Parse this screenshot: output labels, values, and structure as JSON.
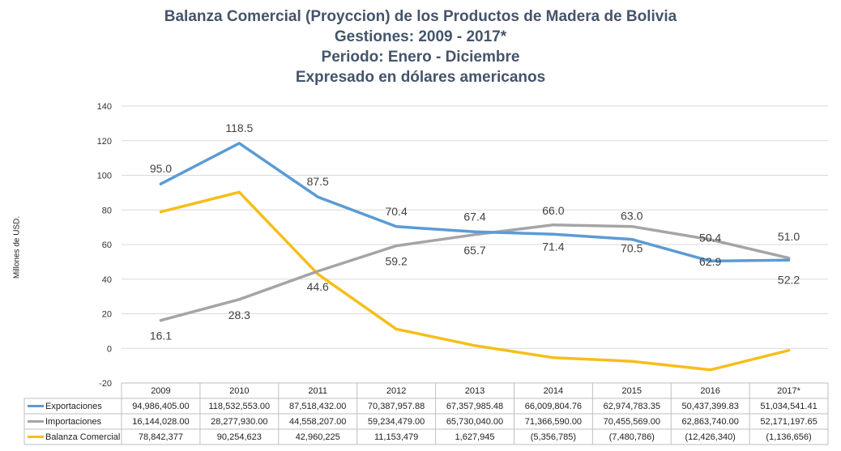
{
  "title_lines": [
    "Balanza Comercial (Proyccion) de los Productos de Madera de Bolivia",
    "Gestiones: 2009 - 2017*",
    "Periodo: Enero - Diciembre",
    "Expresado en dólares americanos"
  ],
  "chart_data": {
    "type": "line",
    "title": "Balanza Comercial (Proyccion) de los Productos de Madera de Bolivia",
    "ylabel": "Millones de USD.",
    "xlabel": "",
    "categories": [
      "2009",
      "2010",
      "2011",
      "2012",
      "2013",
      "2014",
      "2015",
      "2016",
      "2017*"
    ],
    "ylim": [
      -20,
      140
    ],
    "yticks": [
      -20,
      0,
      20,
      40,
      60,
      80,
      100,
      120,
      140
    ],
    "grid": true,
    "legend": "table-below",
    "series": [
      {
        "name": "Exportaciones",
        "color": "#5b9bd5",
        "values": [
          94.986,
          118.533,
          87.518,
          70.388,
          67.358,
          66.01,
          62.975,
          50.437,
          51.035
        ],
        "data_labels": [
          "95.0",
          "118.5",
          "87.5",
          "70.4",
          "67.4",
          "66.0",
          "63.0",
          "50.4",
          "51.0"
        ],
        "table_values": [
          "94,986,405.00",
          "118,532,553.00",
          "87,518,432.00",
          "70,387,957.88",
          "67,357,985.48",
          "66,009,804.76",
          "62,974,783.35",
          "50,437,399.83",
          "51,034,541.41"
        ]
      },
      {
        "name": "Importaciones",
        "color": "#a5a5a5",
        "values": [
          16.144,
          28.278,
          44.558,
          59.234,
          65.73,
          71.367,
          70.456,
          62.864,
          52.171
        ],
        "data_labels": [
          "16.1",
          "28.3",
          "44.6",
          "59.2",
          "65.7",
          "71.4",
          "70.5",
          "62.9",
          "52.2"
        ],
        "table_values": [
          "16,144,028.00",
          "28,277,930.00",
          "44,558,207.00",
          "59,234,479.00",
          "65,730,040.00",
          "71,366,590.00",
          "70,455,569.00",
          "62,863,740.00",
          "52,171,197.65"
        ]
      },
      {
        "name": "Balanza Comercial",
        "color": "#f5be1a",
        "values": [
          78.842,
          90.255,
          42.96,
          11.153,
          1.628,
          -5.357,
          -7.481,
          -12.426,
          -1.137
        ],
        "data_labels": [],
        "table_values": [
          "78,842,377",
          "90,254,623",
          "42,960,225",
          "11,153,479",
          "1,627,945",
          "(5,356,785)",
          "(7,480,786)",
          "(12,426,340)",
          "(1,136,656)"
        ]
      }
    ]
  }
}
